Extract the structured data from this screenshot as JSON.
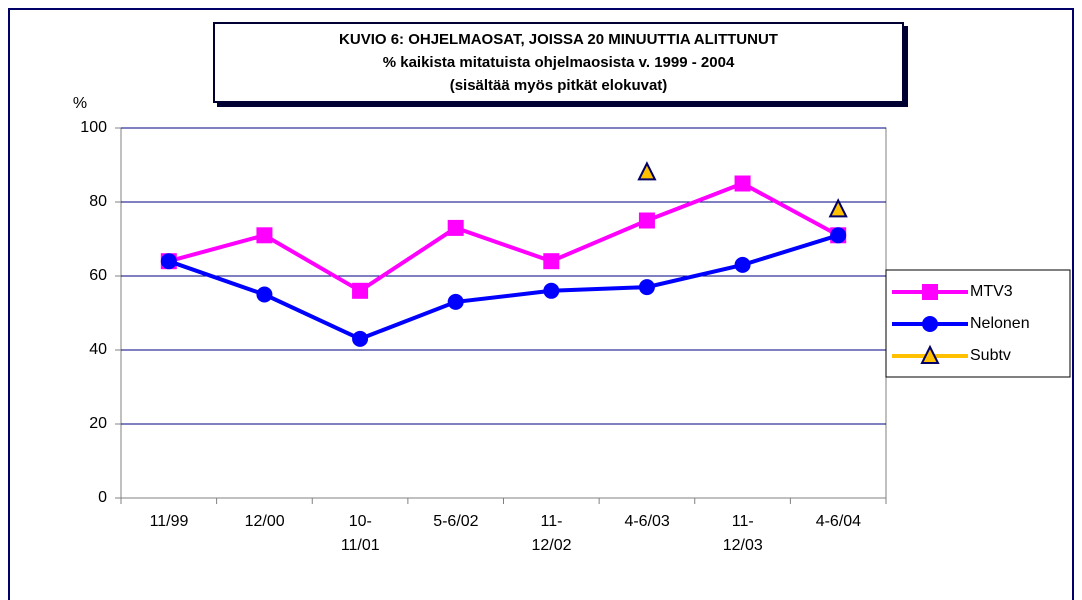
{
  "chart_data": {
    "type": "line",
    "title": "KUVIO 6: OHJELMAOSAT, JOISSA 20 MINUUTTIA ALITTUNUT\n% kaikista mitatuista ohjelmaosista v. 1999 - 2004\n(sisältää myös pitkät elokuvat)",
    "y_label": "%",
    "categories": [
      "11/99",
      "12/00",
      "10-\n11/01",
      "5-6/02",
      "11-\n12/02",
      "4-6/03",
      "11-\n12/03",
      "4-6/04"
    ],
    "series": [
      {
        "name": "MTV3",
        "color": "#ff00ff",
        "marker": "square",
        "values": [
          64,
          71,
          56,
          73,
          64,
          75,
          85,
          71
        ]
      },
      {
        "name": "Nelonen",
        "color": "#0000ff",
        "marker": "circle",
        "values": [
          64,
          55,
          43,
          53,
          56,
          57,
          63,
          71
        ]
      },
      {
        "name": "Subtv",
        "color": "#ffc000",
        "marker": "triangle",
        "values": [
          null,
          null,
          null,
          null,
          null,
          88,
          null,
          78
        ]
      }
    ],
    "ylim": [
      0,
      100
    ],
    "yticks": [
      0,
      20,
      40,
      60,
      80,
      100
    ],
    "grid": true,
    "legend": "right"
  }
}
